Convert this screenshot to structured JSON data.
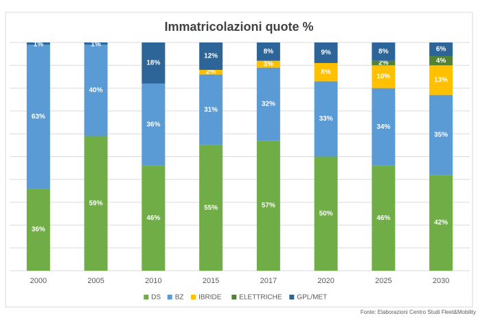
{
  "chart_data": {
    "type": "stacked_bar",
    "title": "Immatricolazioni quote %",
    "categories": [
      "2000",
      "2005",
      "2010",
      "2015",
      "2017",
      "2020",
      "2025",
      "2030"
    ],
    "series": [
      {
        "name": "DS",
        "color": "#70ad47",
        "values": [
          36,
          59,
          46,
          55,
          57,
          50,
          46,
          42
        ],
        "value_labels": [
          "36%",
          "59%",
          "46%",
          "55%",
          "57%",
          "50%",
          "46%",
          "42%"
        ]
      },
      {
        "name": "BZ",
        "color": "#5b9bd5",
        "values": [
          63,
          40,
          36,
          31,
          32,
          33,
          34,
          35
        ],
        "value_labels": [
          "63%",
          "40%",
          "36%",
          "31%",
          "32%",
          "33%",
          "34%",
          "35%"
        ]
      },
      {
        "name": "IBRIDE",
        "color": "#ffc000",
        "values": [
          null,
          null,
          null,
          2,
          3,
          8,
          10,
          13
        ],
        "value_labels": [
          null,
          null,
          null,
          "2%",
          "3%",
          "8%",
          "10%",
          "13%"
        ]
      },
      {
        "name": "ELETTRICHE",
        "color": "#548235",
        "values": [
          null,
          null,
          null,
          null,
          null,
          null,
          2,
          4
        ],
        "value_labels": [
          null,
          null,
          null,
          null,
          null,
          null,
          "2%",
          "4%"
        ]
      },
      {
        "name": "GPL/MET",
        "color": "#2e6599",
        "values": [
          1,
          1,
          18,
          12,
          8,
          9,
          8,
          6
        ],
        "value_labels": [
          "1%",
          "1%",
          "18%",
          "12%",
          "8%",
          "9%",
          "8%",
          "6%"
        ]
      }
    ],
    "ylim": [
      0,
      100
    ],
    "yticks": [
      0,
      10,
      20,
      30,
      40,
      50,
      60,
      70,
      80,
      90,
      100
    ],
    "ytick_labels": false,
    "grid": true,
    "legend": "bottom",
    "source": "Fonte: Elaborazioni Centro Studi Fleet&Mobility"
  }
}
